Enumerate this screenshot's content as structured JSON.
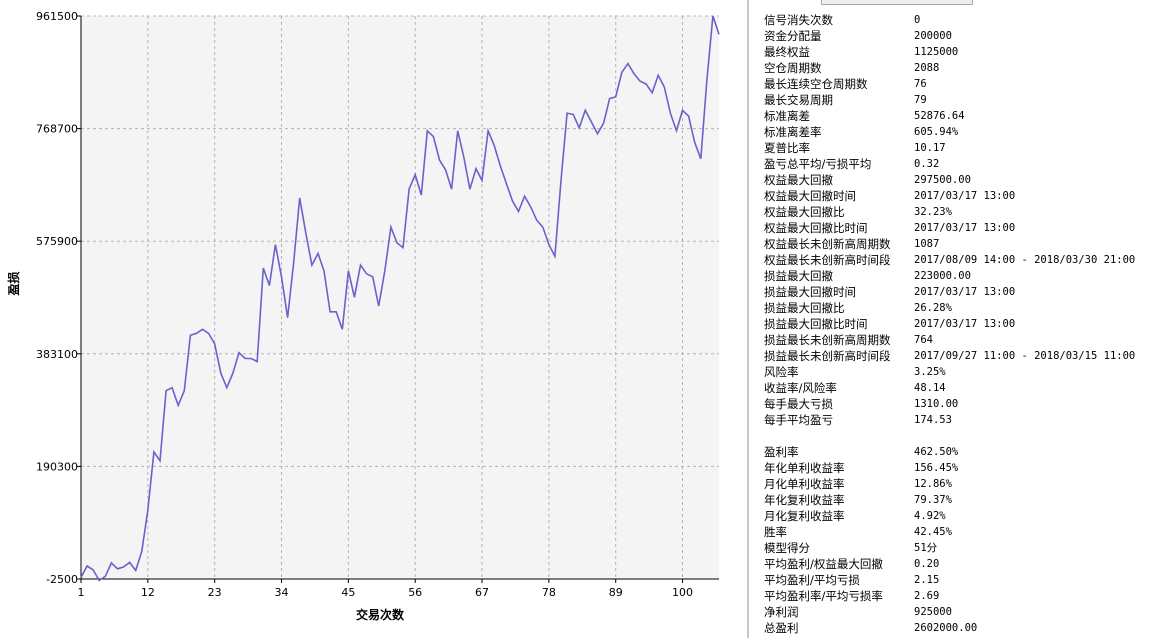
{
  "chart_data": {
    "type": "line",
    "xlabel": "交易次数",
    "ylabel": "盈损",
    "xlim": [
      1,
      106
    ],
    "ylim": [
      -2500,
      961500
    ],
    "x_ticks": [
      1,
      12,
      23,
      34,
      45,
      56,
      67,
      78,
      89,
      100
    ],
    "y_ticks": [
      -2500,
      190300,
      383100,
      575900,
      768700,
      961500
    ],
    "y_tick_labels": [
      "-2500",
      "190300",
      "383100",
      "575900",
      "768700",
      "961500"
    ],
    "grid": true,
    "line_color": "#6a62cc",
    "plot_background": "#f4f4f4",
    "series": [
      {
        "x": [
          1,
          2,
          3,
          4,
          5,
          6,
          7,
          8,
          9,
          10,
          11,
          12,
          13,
          14,
          15,
          16,
          17,
          18,
          19,
          20,
          21,
          22,
          23,
          24,
          25,
          26,
          27,
          28,
          29,
          30,
          31,
          32,
          33,
          34,
          35,
          36,
          37,
          38,
          39,
          40,
          41,
          42,
          43,
          44,
          45,
          46,
          47,
          48,
          49,
          50,
          51,
          52,
          53,
          54,
          55,
          56,
          57,
          58,
          59,
          60,
          61,
          62,
          63,
          64,
          65,
          66,
          67,
          68,
          69,
          70,
          71,
          72,
          73,
          74,
          75,
          76,
          77,
          78,
          79,
          80,
          81,
          82,
          83,
          84,
          85,
          86,
          87,
          88,
          89,
          90,
          91,
          92,
          93,
          94,
          95,
          96,
          97,
          98,
          99,
          100,
          101,
          102,
          103,
          104,
          105,
          106
        ],
        "values": [
          0,
          20000,
          13000,
          -5000,
          2000,
          25000,
          15000,
          18000,
          26000,
          12000,
          45000,
          115000,
          215000,
          200000,
          320000,
          325000,
          295000,
          320000,
          415000,
          418000,
          425000,
          418000,
          400000,
          350000,
          325000,
          350000,
          385000,
          375000,
          375000,
          370000,
          530000,
          500000,
          570000,
          515000,
          445000,
          540000,
          650000,
          590000,
          535000,
          555000,
          525000,
          455000,
          455000,
          425000,
          525000,
          480000,
          535000,
          520000,
          515000,
          465000,
          525000,
          600000,
          573000,
          565000,
          665000,
          690000,
          655000,
          765000,
          755000,
          715000,
          698000,
          665000,
          765000,
          720000,
          665000,
          700000,
          680000,
          765000,
          740000,
          705000,
          675000,
          645000,
          627000,
          653000,
          635000,
          612000,
          600000,
          570000,
          550000,
          680000,
          795000,
          793000,
          770000,
          800000,
          780000,
          760000,
          778000,
          820000,
          823000,
          865000,
          880000,
          863000,
          850000,
          845000,
          830000,
          860000,
          840000,
          795000,
          765000,
          800000,
          790000,
          745000,
          717000,
          850000,
          961500,
          930000
        ]
      }
    ]
  },
  "stats": {
    "group1": [
      {
        "label": "信号消失次数",
        "value": "0"
      },
      {
        "label": "资金分配量",
        "value": "200000"
      },
      {
        "label": "最终权益",
        "value": "1125000"
      },
      {
        "label": "空仓周期数",
        "value": "2088"
      },
      {
        "label": "最长连续空仓周期数",
        "value": "76"
      },
      {
        "label": "最长交易周期",
        "value": "79"
      },
      {
        "label": "标准离差",
        "value": "52876.64"
      },
      {
        "label": "标准离差率",
        "value": "605.94%"
      },
      {
        "label": "夏普比率",
        "value": "10.17"
      },
      {
        "label": "盈亏总平均/亏损平均",
        "value": "0.32"
      },
      {
        "label": "权益最大回撤",
        "value": "297500.00"
      },
      {
        "label": "权益最大回撤时间",
        "value": "2017/03/17 13:00"
      },
      {
        "label": "权益最大回撤比",
        "value": "32.23%"
      },
      {
        "label": "权益最大回撤比时间",
        "value": "2017/03/17 13:00"
      },
      {
        "label": "权益最长未创新高周期数",
        "value": "1087"
      },
      {
        "label": "权益最长未创新高时间段",
        "value": "2017/08/09 14:00 - 2018/03/30 21:00"
      },
      {
        "label": "损益最大回撤",
        "value": "223000.00"
      },
      {
        "label": "损益最大回撤时间",
        "value": "2017/03/17 13:00"
      },
      {
        "label": "损益最大回撤比",
        "value": "26.28%"
      },
      {
        "label": "损益最大回撤比时间",
        "value": "2017/03/17 13:00"
      },
      {
        "label": "损益最长未创新高周期数",
        "value": "764"
      },
      {
        "label": "损益最长未创新高时间段",
        "value": "2017/09/27 11:00 - 2018/03/15 11:00"
      },
      {
        "label": "风险率",
        "value": "3.25%"
      },
      {
        "label": "收益率/风险率",
        "value": "48.14"
      },
      {
        "label": "每手最大亏损",
        "value": "1310.00"
      },
      {
        "label": "每手平均盈亏",
        "value": "174.53"
      }
    ],
    "group2": [
      {
        "label": "盈利率",
        "value": "462.50%"
      },
      {
        "label": "年化单利收益率",
        "value": "156.45%"
      },
      {
        "label": "月化单利收益率",
        "value": "12.86%"
      },
      {
        "label": "年化复利收益率",
        "value": "79.37%"
      },
      {
        "label": "月化复利收益率",
        "value": "4.92%"
      },
      {
        "label": "胜率",
        "value": "42.45%"
      },
      {
        "label": "模型得分",
        "value": "51分"
      },
      {
        "label": "平均盈利/权益最大回撤",
        "value": "0.20"
      },
      {
        "label": "平均盈利/平均亏损",
        "value": "2.15"
      },
      {
        "label": "平均盈利率/平均亏损率",
        "value": "2.69"
      },
      {
        "label": "净利润",
        "value": "925000"
      },
      {
        "label": "总盈利",
        "value": "2602000.00"
      }
    ]
  }
}
